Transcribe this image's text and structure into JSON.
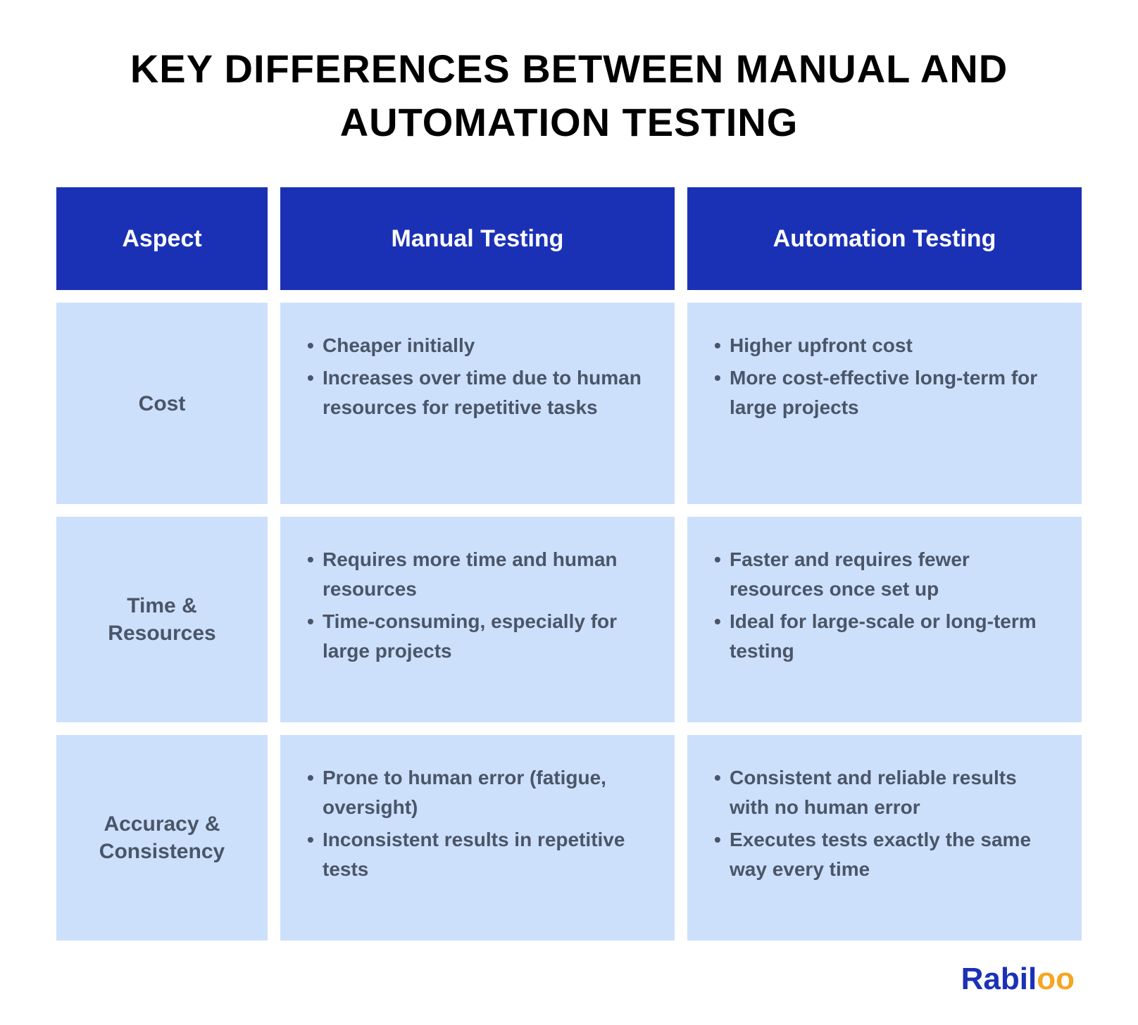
{
  "title": "KEY DIFFERENCES BETWEEN MANUAL AND AUTOMATION TESTING",
  "colors": {
    "header_bg": "#1b31b5",
    "header_text": "#ffffff",
    "cell_bg": "#cde0fb",
    "cell_text": "#4a5568",
    "page_bg": "#ffffff",
    "title_color": "#000000",
    "logo_primary": "#1b31b5",
    "logo_accent": "#f5a623"
  },
  "typography": {
    "title_fontsize": 56,
    "title_weight": 900,
    "header_fontsize": 34,
    "header_weight": 700,
    "aspect_fontsize": 30,
    "aspect_weight": 700,
    "content_fontsize": 28,
    "content_weight": 700,
    "logo_fontsize": 44
  },
  "layout": {
    "grid_columns": "300px 1fr 1fr",
    "gap": 18,
    "cell_min_height": 250,
    "header_min_height": 110
  },
  "table": {
    "type": "comparison-table",
    "columns": [
      "Aspect",
      "Manual Testing",
      "Automation Testing"
    ],
    "rows": [
      {
        "aspect": "Cost",
        "manual": [
          "Cheaper initially",
          "Increases over time due to human resources for repetitive tasks"
        ],
        "automation": [
          "Higher upfront cost",
          "More cost-effective long-term for large projects"
        ]
      },
      {
        "aspect": "Time & Resources",
        "manual": [
          "Requires more time and human resources",
          "Time-consuming, especially for large projects"
        ],
        "automation": [
          "Faster and requires fewer resources once set up",
          "Ideal for large-scale or long-term testing"
        ]
      },
      {
        "aspect": "Accuracy & Consistency",
        "manual": [
          "Prone to human error (fatigue, oversight)",
          "Inconsistent results in repetitive tests"
        ],
        "automation": [
          "Consistent and reliable results with no human error",
          "Executes tests exactly the same way every time"
        ]
      }
    ]
  },
  "logo": {
    "text_part1": "Rabil",
    "text_part2": "oo",
    "brand": "Rabiloo"
  }
}
